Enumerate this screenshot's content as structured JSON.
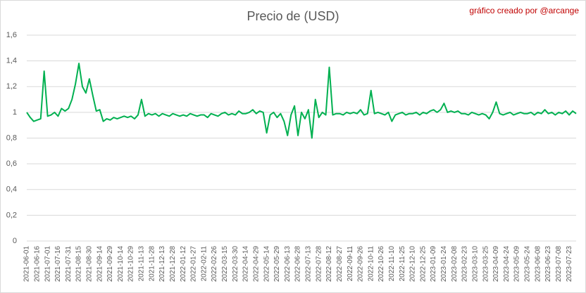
{
  "chart_data": {
    "type": "line",
    "title": "Precio de (USD)",
    "annotation": "gráfico creado por @arcange",
    "color": "#00b050",
    "grid": true,
    "ylim": [
      0,
      1.6
    ],
    "yticks": [
      0,
      {
        "value": 0.2,
        "label": "0,2"
      },
      {
        "value": 0.4,
        "label": "0,4"
      },
      {
        "value": 0.6,
        "label": "0,6"
      },
      {
        "value": 0.8,
        "label": "0,8"
      },
      1,
      {
        "value": 1.2,
        "label": "1,2"
      },
      {
        "value": 1.4,
        "label": "1,4"
      },
      {
        "value": 1.6,
        "label": "1,6"
      }
    ],
    "categories": [
      "2021-06-01",
      null,
      null,
      "2021-06-16",
      null,
      null,
      "2021-07-01",
      null,
      null,
      "2021-07-16",
      null,
      null,
      "2021-07-31",
      null,
      null,
      "2021-08-15",
      null,
      null,
      "2021-08-30",
      null,
      null,
      "2021-09-14",
      null,
      null,
      "2021-09-29",
      null,
      null,
      "2021-10-14",
      null,
      null,
      "2021-10-29",
      null,
      null,
      "2021-11-13",
      null,
      null,
      "2021-11-28",
      null,
      null,
      "2021-12-13",
      null,
      null,
      "2021-12-28",
      null,
      null,
      "2022-01-12",
      null,
      null,
      "2022-01-27",
      null,
      null,
      "2022-02-11",
      null,
      null,
      "2022-02-26",
      null,
      null,
      "2022-03-15",
      null,
      null,
      "2022-03-30",
      null,
      null,
      "2022-04-14",
      null,
      null,
      "2022-04-29",
      null,
      null,
      "2022-05-14",
      null,
      null,
      "2022-05-29",
      null,
      null,
      "2022-06-13",
      null,
      null,
      "2022-06-28",
      null,
      null,
      "2022-07-13",
      null,
      null,
      "2022-07-28",
      null,
      null,
      "2022-08-12",
      null,
      null,
      "2022-08-27",
      null,
      null,
      "2022-09-11",
      null,
      null,
      "2022-09-26",
      null,
      null,
      "2022-10-11",
      null,
      null,
      "2022-10-26",
      null,
      null,
      "2022-11-10",
      null,
      null,
      "2022-11-25",
      null,
      null,
      "2022-12-10",
      null,
      null,
      "2022-12-25",
      null,
      null,
      "2023-01-09",
      null,
      null,
      "2023-01-24",
      null,
      null,
      "2023-02-08",
      null,
      null,
      "2023-02-23",
      null,
      null,
      "2023-03-10",
      null,
      null,
      "2023-03-25",
      null,
      null,
      "2023-04-09",
      null,
      null,
      "2023-04-24",
      null,
      null,
      "2023-05-09",
      null,
      null,
      "2023-05-24",
      null,
      null,
      "2023-06-08",
      null,
      null,
      "2023-06-23",
      null,
      null,
      "2023-07-08",
      null,
      null,
      "2023-07-23",
      null,
      null
    ],
    "values": [
      1.0,
      0.96,
      0.93,
      0.94,
      0.95,
      1.32,
      0.97,
      0.98,
      1.0,
      0.97,
      1.03,
      1.01,
      1.03,
      1.1,
      1.22,
      1.38,
      1.2,
      1.15,
      1.26,
      1.13,
      1.01,
      1.02,
      0.93,
      0.95,
      0.94,
      0.96,
      0.95,
      0.96,
      0.97,
      0.96,
      0.97,
      0.95,
      0.98,
      1.1,
      0.97,
      0.99,
      0.98,
      0.99,
      0.97,
      0.99,
      0.98,
      0.97,
      0.99,
      0.98,
      0.97,
      0.98,
      0.97,
      0.99,
      0.98,
      0.97,
      0.98,
      0.98,
      0.96,
      0.99,
      0.98,
      0.97,
      0.99,
      1.0,
      0.98,
      0.99,
      0.98,
      1.01,
      0.99,
      0.99,
      1.0,
      1.02,
      0.99,
      1.01,
      1.0,
      0.84,
      0.98,
      1.0,
      0.96,
      0.99,
      0.93,
      0.82,
      0.98,
      1.05,
      0.82,
      1.0,
      0.95,
      1.02,
      0.8,
      1.1,
      0.96,
      1.0,
      0.98,
      1.35,
      0.98,
      0.99,
      0.99,
      0.98,
      1.0,
      0.99,
      1.0,
      0.99,
      1.02,
      0.98,
      0.99,
      1.17,
      0.99,
      1.0,
      0.99,
      0.98,
      1.0,
      0.93,
      0.98,
      0.99,
      1.0,
      0.98,
      0.99,
      0.99,
      1.0,
      0.98,
      1.0,
      0.99,
      1.01,
      1.02,
      1.0,
      1.02,
      1.07,
      1.0,
      1.01,
      1.0,
      1.01,
      0.99,
      0.99,
      0.98,
      1.0,
      0.99,
      0.98,
      0.99,
      0.98,
      0.95,
      1.0,
      1.08,
      0.99,
      0.98,
      0.99,
      1.0,
      0.98,
      0.99,
      1.0,
      0.99,
      0.99,
      1.0,
      0.98,
      1.0,
      0.99,
      1.02,
      0.99,
      1.0,
      0.98,
      1.0,
      0.99,
      1.01,
      0.98,
      1.01,
      0.99
    ]
  }
}
